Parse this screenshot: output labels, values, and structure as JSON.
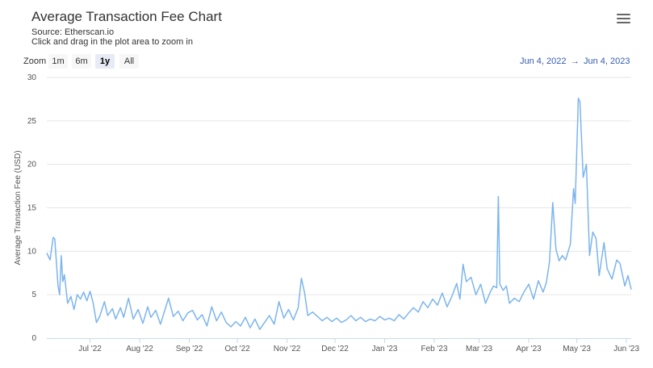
{
  "header": {
    "title": "Average Transaction Fee Chart",
    "source": "Source: Etherscan.io",
    "hint": "Click and drag in the plot area to zoom in"
  },
  "toolbar": {
    "zoom_label": "Zoom",
    "buttons": [
      "1m",
      "6m",
      "1y",
      "All"
    ],
    "active": "1y",
    "range_from": "Jun 4, 2022",
    "range_arrow": "→",
    "range_to": "Jun 4, 2023",
    "menu_icon": "hamburger-menu-icon"
  },
  "chart_data": {
    "type": "line",
    "title": "Average Transaction Fee Chart",
    "ylabel": "Average Transaction Fee (USD)",
    "xlabel": "",
    "ylim": [
      0,
      30
    ],
    "yticks": [
      0,
      5,
      10,
      15,
      20,
      25,
      30
    ],
    "xticks": [
      "Jul '22",
      "Aug '22",
      "Sep '22",
      "Oct '22",
      "Nov '22",
      "Dec '22",
      "Jan '23",
      "Feb '23",
      "Mar '23",
      "Apr '23",
      "May '23",
      "Jun '23"
    ],
    "xrange": [
      "2022-06-04",
      "2023-06-04"
    ],
    "grid": true,
    "color": "#7cb5ec",
    "series": [
      {
        "points": [
          [
            "2022-06-04",
            9.8
          ],
          [
            "2022-06-06",
            9.0
          ],
          [
            "2022-06-08",
            11.6
          ],
          [
            "2022-06-09",
            11.4
          ],
          [
            "2022-06-11",
            6.0
          ],
          [
            "2022-06-12",
            5.0
          ],
          [
            "2022-06-13",
            9.5
          ],
          [
            "2022-06-14",
            6.5
          ],
          [
            "2022-06-15",
            7.3
          ],
          [
            "2022-06-17",
            4.0
          ],
          [
            "2022-06-19",
            4.8
          ],
          [
            "2022-06-21",
            3.3
          ],
          [
            "2022-06-23",
            5.0
          ],
          [
            "2022-06-25",
            4.5
          ],
          [
            "2022-06-27",
            5.3
          ],
          [
            "2022-06-29",
            4.3
          ],
          [
            "2022-07-01",
            5.4
          ],
          [
            "2022-07-03",
            4.0
          ],
          [
            "2022-07-05",
            1.8
          ],
          [
            "2022-07-07",
            2.5
          ],
          [
            "2022-07-10",
            4.2
          ],
          [
            "2022-07-12",
            2.6
          ],
          [
            "2022-07-15",
            3.4
          ],
          [
            "2022-07-17",
            2.2
          ],
          [
            "2022-07-20",
            3.5
          ],
          [
            "2022-07-22",
            2.4
          ],
          [
            "2022-07-25",
            4.6
          ],
          [
            "2022-07-28",
            2.2
          ],
          [
            "2022-07-31",
            3.3
          ],
          [
            "2022-08-03",
            1.7
          ],
          [
            "2022-08-06",
            3.6
          ],
          [
            "2022-08-08",
            2.4
          ],
          [
            "2022-08-11",
            3.2
          ],
          [
            "2022-08-14",
            1.6
          ],
          [
            "2022-08-17",
            3.4
          ],
          [
            "2022-08-19",
            4.6
          ],
          [
            "2022-08-22",
            2.5
          ],
          [
            "2022-08-25",
            3.1
          ],
          [
            "2022-08-28",
            2.0
          ],
          [
            "2022-08-31",
            2.9
          ],
          [
            "2022-09-03",
            3.2
          ],
          [
            "2022-09-06",
            2.1
          ],
          [
            "2022-09-09",
            2.7
          ],
          [
            "2022-09-12",
            1.4
          ],
          [
            "2022-09-15",
            3.6
          ],
          [
            "2022-09-18",
            2.0
          ],
          [
            "2022-09-21",
            3.0
          ],
          [
            "2022-09-24",
            1.8
          ],
          [
            "2022-09-27",
            1.3
          ],
          [
            "2022-09-30",
            1.9
          ],
          [
            "2022-10-03",
            1.4
          ],
          [
            "2022-10-06",
            2.4
          ],
          [
            "2022-10-09",
            1.2
          ],
          [
            "2022-10-12",
            2.2
          ],
          [
            "2022-10-15",
            1.0
          ],
          [
            "2022-10-18",
            1.8
          ],
          [
            "2022-10-21",
            2.6
          ],
          [
            "2022-10-24",
            1.6
          ],
          [
            "2022-10-27",
            4.2
          ],
          [
            "2022-10-30",
            2.3
          ],
          [
            "2022-11-02",
            3.3
          ],
          [
            "2022-11-05",
            2.1
          ],
          [
            "2022-11-08",
            3.5
          ],
          [
            "2022-11-10",
            6.9
          ],
          [
            "2022-11-12",
            5.2
          ],
          [
            "2022-11-14",
            2.6
          ],
          [
            "2022-11-17",
            3.0
          ],
          [
            "2022-11-20",
            2.5
          ],
          [
            "2022-11-23",
            2.0
          ],
          [
            "2022-11-26",
            2.4
          ],
          [
            "2022-11-29",
            1.9
          ],
          [
            "2022-12-02",
            2.3
          ],
          [
            "2022-12-05",
            1.8
          ],
          [
            "2022-12-08",
            2.1
          ],
          [
            "2022-12-11",
            2.6
          ],
          [
            "2022-12-14",
            2.0
          ],
          [
            "2022-12-17",
            2.4
          ],
          [
            "2022-12-20",
            1.9
          ],
          [
            "2022-12-23",
            2.2
          ],
          [
            "2022-12-26",
            2.0
          ],
          [
            "2022-12-29",
            2.5
          ],
          [
            "2023-01-01",
            2.1
          ],
          [
            "2023-01-04",
            2.3
          ],
          [
            "2023-01-07",
            2.0
          ],
          [
            "2023-01-10",
            2.7
          ],
          [
            "2023-01-13",
            2.2
          ],
          [
            "2023-01-16",
            2.9
          ],
          [
            "2023-01-19",
            3.5
          ],
          [
            "2023-01-22",
            3.0
          ],
          [
            "2023-01-25",
            4.2
          ],
          [
            "2023-01-28",
            3.5
          ],
          [
            "2023-01-31",
            4.5
          ],
          [
            "2023-02-03",
            3.8
          ],
          [
            "2023-02-06",
            5.2
          ],
          [
            "2023-02-09",
            3.6
          ],
          [
            "2023-02-12",
            4.8
          ],
          [
            "2023-02-15",
            6.3
          ],
          [
            "2023-02-17",
            4.5
          ],
          [
            "2023-02-19",
            8.5
          ],
          [
            "2023-02-21",
            6.5
          ],
          [
            "2023-02-24",
            7.0
          ],
          [
            "2023-02-27",
            5.0
          ],
          [
            "2023-03-02",
            6.2
          ],
          [
            "2023-03-05",
            4.0
          ],
          [
            "2023-03-08",
            5.3
          ],
          [
            "2023-03-10",
            6.0
          ],
          [
            "2023-03-12",
            5.8
          ],
          [
            "2023-03-13",
            16.3
          ],
          [
            "2023-03-14",
            6.2
          ],
          [
            "2023-03-16",
            5.5
          ],
          [
            "2023-03-18",
            6.0
          ],
          [
            "2023-03-20",
            4.0
          ],
          [
            "2023-03-23",
            4.6
          ],
          [
            "2023-03-26",
            4.2
          ],
          [
            "2023-03-29",
            5.3
          ],
          [
            "2023-04-01",
            6.2
          ],
          [
            "2023-04-04",
            4.5
          ],
          [
            "2023-04-07",
            6.6
          ],
          [
            "2023-04-10",
            5.3
          ],
          [
            "2023-04-12",
            6.4
          ],
          [
            "2023-04-14",
            8.8
          ],
          [
            "2023-04-16",
            15.6
          ],
          [
            "2023-04-18",
            10.2
          ],
          [
            "2023-04-20",
            8.9
          ],
          [
            "2023-04-22",
            9.5
          ],
          [
            "2023-04-24",
            9.0
          ],
          [
            "2023-04-27",
            10.8
          ],
          [
            "2023-04-29",
            17.2
          ],
          [
            "2023-04-30",
            15.5
          ],
          [
            "2023-05-02",
            27.6
          ],
          [
            "2023-05-03",
            27.2
          ],
          [
            "2023-05-05",
            18.5
          ],
          [
            "2023-05-07",
            20.0
          ],
          [
            "2023-05-09",
            9.5
          ],
          [
            "2023-05-11",
            12.2
          ],
          [
            "2023-05-13",
            11.5
          ],
          [
            "2023-05-15",
            7.2
          ],
          [
            "2023-05-18",
            11.0
          ],
          [
            "2023-05-20",
            8.0
          ],
          [
            "2023-05-23",
            6.8
          ],
          [
            "2023-05-26",
            9.0
          ],
          [
            "2023-05-28",
            8.6
          ],
          [
            "2023-05-31",
            6.0
          ],
          [
            "2023-06-02",
            7.2
          ],
          [
            "2023-06-04",
            5.6
          ]
        ]
      }
    ]
  }
}
